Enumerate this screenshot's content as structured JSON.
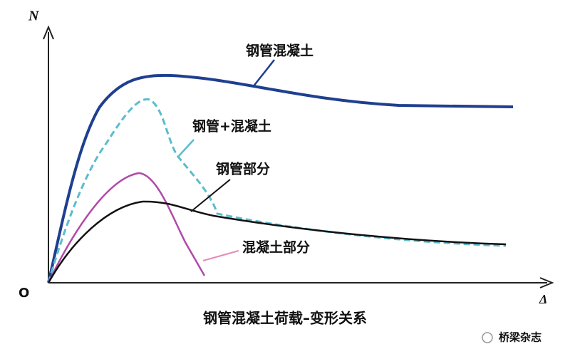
{
  "axes": {
    "y_label": "N",
    "x_label": "Δ",
    "origin_label": "O"
  },
  "curves": {
    "composite": "钢管混凝土",
    "sum": "钢管+混凝土",
    "steel": "钢管部分",
    "concrete": "混凝土部分"
  },
  "caption": "钢管混凝土荷载–变形关系",
  "watermark": "桥梁杂志"
}
